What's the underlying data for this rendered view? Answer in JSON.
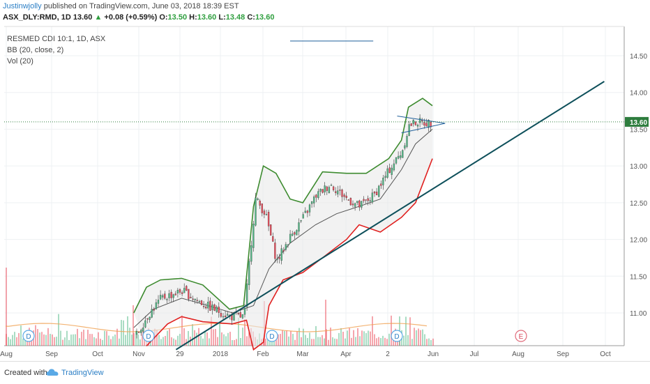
{
  "header": {
    "author": "Justinwjolly",
    "published": "published on TradingView.com, June 03, 2018 18:39 EST",
    "symbol": "ASX_DLY:RMD, 1D",
    "price": "13.60",
    "change": "+0.08 (+0.59%)",
    "o_label": "O:",
    "o_val": "13.50",
    "h_label": "H:",
    "h_val": "13.60",
    "l_label": "L:",
    "l_val": "13.48",
    "c_label": "C:",
    "c_val": "13.60"
  },
  "legend": {
    "line1": "RESMED CDI 10:1, 1D, ASX",
    "line2": "BB (20, close, 2)",
    "line3": "Vol (20)"
  },
  "footer": {
    "created_with": "Created with",
    "brand": "TradingView"
  },
  "colors": {
    "up": "#53b987",
    "down": "#eb4d5c",
    "bb_upper": "#3d8b2f",
    "bb_lower": "#e0201f",
    "trend": "#0d4f5a",
    "price_tag": "#2e7d3e"
  },
  "chart_data": {
    "type": "candlestick",
    "y_ticks": [
      "14.50",
      "14.00",
      "13.50",
      "13.00",
      "12.50",
      "12.00",
      "11.50",
      "11.00"
    ],
    "ylim": [
      10.55,
      14.85
    ],
    "x_ticks": [
      "Aug",
      "Sep",
      "Oct",
      "Nov",
      "29",
      "2018",
      "Feb",
      "Mar",
      "Apr",
      "2",
      "Jun",
      "Jul",
      "Aug",
      "Sep",
      "Oct"
    ],
    "price_label": "13.60",
    "dividend_markers": [
      "D",
      "D",
      "D",
      "D"
    ],
    "earnings_markers": [
      "E"
    ],
    "bollinger_upper": [
      [
        "2017-11-01",
        11.0
      ],
      [
        "2017-11-10",
        11.35
      ],
      [
        "2017-11-20",
        11.45
      ],
      [
        "2017-12-05",
        11.47
      ],
      [
        "2017-12-20",
        11.38
      ],
      [
        "2018-01-08",
        11.05
      ],
      [
        "2018-01-18",
        11.1
      ],
      [
        "2018-01-25",
        12.45
      ],
      [
        "2018-02-01",
        13.0
      ],
      [
        "2018-02-10",
        12.9
      ],
      [
        "2018-02-20",
        12.55
      ],
      [
        "2018-03-01",
        12.5
      ],
      [
        "2018-03-15",
        12.92
      ],
      [
        "2018-04-01",
        12.9
      ],
      [
        "2018-04-15",
        12.9
      ],
      [
        "2018-05-01",
        13.1
      ],
      [
        "2018-05-10",
        13.35
      ],
      [
        "2018-05-15",
        13.8
      ],
      [
        "2018-05-25",
        13.92
      ],
      [
        "2018-06-01",
        13.82
      ]
    ],
    "bollinger_lower": [
      [
        "2017-11-10",
        10.55
      ],
      [
        "2017-11-25",
        10.85
      ],
      [
        "2017-12-05",
        10.95
      ],
      [
        "2017-12-20",
        10.88
      ],
      [
        "2018-01-10",
        10.85
      ],
      [
        "2018-01-20",
        10.9
      ],
      [
        "2018-01-25",
        10.5
      ],
      [
        "2018-02-01",
        10.6
      ],
      [
        "2018-02-05",
        11.1
      ],
      [
        "2018-02-15",
        11.45
      ],
      [
        "2018-03-01",
        11.55
      ],
      [
        "2018-03-15",
        11.75
      ],
      [
        "2018-04-01",
        12.0
      ],
      [
        "2018-04-10",
        12.2
      ],
      [
        "2018-04-25",
        12.1
      ],
      [
        "2018-05-10",
        12.3
      ],
      [
        "2018-05-20",
        12.5
      ],
      [
        "2018-06-01",
        13.1
      ]
    ],
    "bollinger_basis": [
      [
        "2017-11-01",
        10.8
      ],
      [
        "2017-11-15",
        11.05
      ],
      [
        "2017-12-05",
        11.2
      ],
      [
        "2017-12-20",
        11.12
      ],
      [
        "2018-01-10",
        11.0
      ],
      [
        "2018-01-25",
        11.1
      ],
      [
        "2018-02-05",
        11.6
      ],
      [
        "2018-02-20",
        11.95
      ],
      [
        "2018-03-10",
        12.2
      ],
      [
        "2018-03-25",
        12.35
      ],
      [
        "2018-04-10",
        12.45
      ],
      [
        "2018-04-25",
        12.55
      ],
      [
        "2018-05-10",
        12.95
      ],
      [
        "2018-05-20",
        13.3
      ],
      [
        "2018-06-01",
        13.5
      ]
    ],
    "trend_line": [
      [
        "2017-12-01",
        10.5
      ],
      [
        "2018-10-01",
        14.15
      ]
    ],
    "triangle_top": [
      [
        "2018-05-07",
        13.68
      ],
      [
        "2018-06-10",
        13.58
      ]
    ],
    "triangle_bottom": [
      [
        "2018-05-10",
        13.45
      ],
      [
        "2018-06-10",
        13.58
      ]
    ],
    "resistance_line": [
      [
        "2018-02-20",
        14.7
      ],
      [
        "2018-04-20",
        14.7
      ]
    ]
  }
}
